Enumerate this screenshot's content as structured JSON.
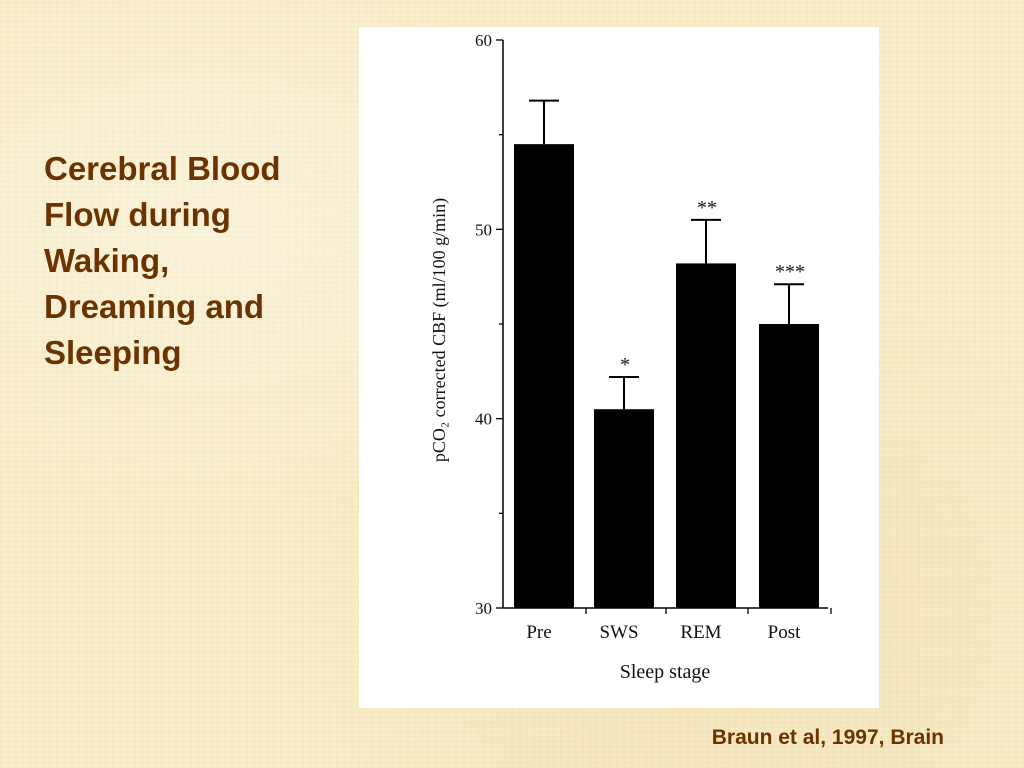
{
  "slide": {
    "title_lines": [
      "Cerebral Blood",
      "Flow during",
      "Waking,",
      "Dreaming and",
      "Sleeping"
    ],
    "citation": "Braun et al, 1997, Brain"
  },
  "colors": {
    "background": "#f8ecc6",
    "text_accent": "#6b3300",
    "bars": "#000000",
    "panel": "#ffffff"
  },
  "chart_data": {
    "type": "bar",
    "categories": [
      "Pre",
      "SWS",
      "REM",
      "Post"
    ],
    "values": [
      54.5,
      40.5,
      48.2,
      45.0
    ],
    "error_upper": [
      56.8,
      42.2,
      50.5,
      47.1
    ],
    "annotations": [
      "",
      "*",
      "**",
      "***"
    ],
    "xlabel": "Sleep stage",
    "ylabel": "pCO₂ corrected CBF (ml/100 g/min)",
    "ylim": [
      30,
      60
    ],
    "yticks": [
      30,
      40,
      50,
      60
    ],
    "grid": false,
    "legend": "none"
  }
}
